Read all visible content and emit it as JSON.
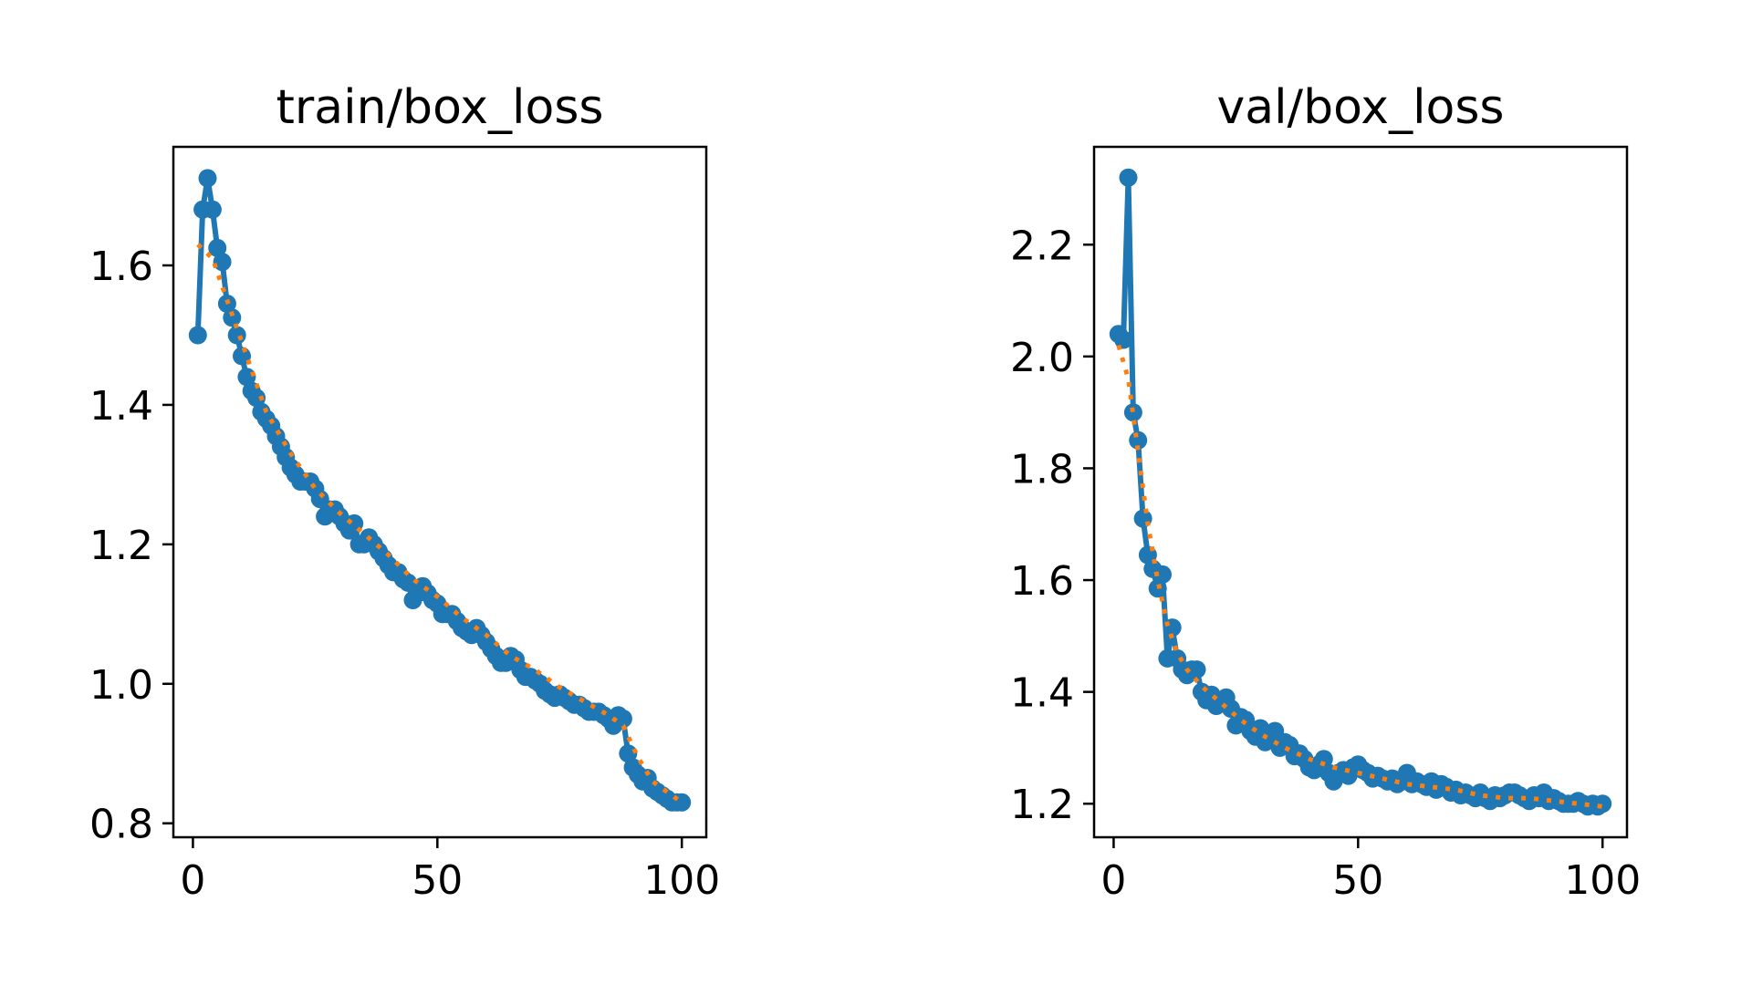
{
  "chart_data": [
    {
      "type": "line",
      "title": "train/box_loss",
      "xlabel": "",
      "ylabel": "",
      "xlim": [
        -4,
        105
      ],
      "ylim": [
        0.78,
        1.77
      ],
      "xticks": [
        0,
        50,
        100
      ],
      "xtick_labels": [
        "0",
        "50",
        "100"
      ],
      "yticks": [
        0.8,
        1.0,
        1.2,
        1.4,
        1.6
      ],
      "ytick_labels": [
        "0.8",
        "1.0",
        "1.2",
        "1.4",
        "1.6"
      ],
      "grid": false,
      "legend": "none",
      "series": [
        {
          "style": "line-markers",
          "color": "#1f77b4",
          "x": [
            1,
            2,
            3,
            4,
            5,
            6,
            7,
            8,
            9,
            10,
            11,
            12,
            13,
            14,
            15,
            16,
            17,
            18,
            19,
            20,
            21,
            22,
            23,
            24,
            25,
            26,
            27,
            28,
            29,
            30,
            31,
            32,
            33,
            34,
            35,
            36,
            37,
            38,
            39,
            40,
            41,
            42,
            43,
            44,
            45,
            46,
            47,
            48,
            49,
            50,
            51,
            52,
            53,
            54,
            55,
            56,
            57,
            58,
            59,
            60,
            61,
            62,
            63,
            64,
            65,
            66,
            67,
            68,
            69,
            70,
            71,
            72,
            73,
            74,
            75,
            76,
            77,
            78,
            79,
            80,
            81,
            82,
            83,
            84,
            85,
            86,
            87,
            88,
            89,
            90,
            91,
            92,
            93,
            94,
            95,
            96,
            97,
            98,
            99,
            100
          ],
          "y": [
            1.5,
            1.68,
            1.725,
            1.68,
            1.625,
            1.605,
            1.545,
            1.525,
            1.5,
            1.47,
            1.44,
            1.42,
            1.41,
            1.39,
            1.38,
            1.37,
            1.355,
            1.34,
            1.325,
            1.31,
            1.3,
            1.29,
            1.29,
            1.29,
            1.28,
            1.265,
            1.24,
            1.25,
            1.25,
            1.24,
            1.23,
            1.22,
            1.23,
            1.2,
            1.2,
            1.21,
            1.2,
            1.19,
            1.18,
            1.17,
            1.16,
            1.16,
            1.15,
            1.145,
            1.12,
            1.13,
            1.14,
            1.13,
            1.12,
            1.115,
            1.1,
            1.1,
            1.1,
            1.09,
            1.08,
            1.075,
            1.07,
            1.08,
            1.07,
            1.06,
            1.05,
            1.04,
            1.03,
            1.03,
            1.04,
            1.035,
            1.02,
            1.01,
            1.01,
            1.005,
            1.0,
            0.99,
            0.985,
            0.98,
            0.985,
            0.98,
            0.975,
            0.97,
            0.97,
            0.965,
            0.96,
            0.96,
            0.96,
            0.955,
            0.95,
            0.94,
            0.955,
            0.95,
            0.9,
            0.88,
            0.87,
            0.86,
            0.865,
            0.85,
            0.845,
            0.84,
            0.835,
            0.83,
            0.83,
            0.83
          ]
        },
        {
          "style": "dotted",
          "color": "#ff7f0e",
          "x": [
            1,
            4,
            7,
            10,
            15,
            20,
            25,
            30,
            35,
            40,
            45,
            50,
            55,
            60,
            65,
            70,
            75,
            80,
            85,
            88,
            91,
            94,
            97,
            100
          ],
          "y": [
            1.63,
            1.61,
            1.55,
            1.49,
            1.39,
            1.33,
            1.28,
            1.245,
            1.215,
            1.185,
            1.15,
            1.125,
            1.095,
            1.07,
            1.04,
            1.02,
            0.995,
            0.975,
            0.955,
            0.94,
            0.895,
            0.86,
            0.845,
            0.83
          ]
        }
      ]
    },
    {
      "type": "line",
      "title": "val/box_loss",
      "xlabel": "",
      "ylabel": "",
      "xlim": [
        -4,
        105
      ],
      "ylim": [
        1.14,
        2.375
      ],
      "xticks": [
        0,
        50,
        100
      ],
      "xtick_labels": [
        "0",
        "50",
        "100"
      ],
      "yticks": [
        1.2,
        1.4,
        1.6,
        1.8,
        2.0,
        2.2
      ],
      "ytick_labels": [
        "1.2",
        "1.4",
        "1.6",
        "1.8",
        "2.0",
        "2.2"
      ],
      "grid": false,
      "legend": "none",
      "series": [
        {
          "style": "line-markers",
          "color": "#1f77b4",
          "x": [
            1,
            2,
            3,
            4,
            5,
            6,
            7,
            8,
            9,
            10,
            11,
            12,
            13,
            14,
            15,
            16,
            17,
            18,
            19,
            20,
            21,
            22,
            23,
            24,
            25,
            26,
            27,
            28,
            29,
            30,
            31,
            32,
            33,
            34,
            35,
            36,
            37,
            38,
            39,
            40,
            41,
            42,
            43,
            44,
            45,
            46,
            47,
            48,
            49,
            50,
            51,
            52,
            53,
            54,
            55,
            56,
            57,
            58,
            59,
            60,
            61,
            62,
            63,
            64,
            65,
            66,
            67,
            68,
            69,
            70,
            71,
            72,
            73,
            74,
            75,
            76,
            77,
            78,
            79,
            80,
            81,
            82,
            83,
            84,
            85,
            86,
            87,
            88,
            89,
            90,
            91,
            92,
            93,
            94,
            95,
            96,
            97,
            98,
            99,
            100
          ],
          "y": [
            2.04,
            2.03,
            2.32,
            1.9,
            1.85,
            1.71,
            1.645,
            1.62,
            1.585,
            1.61,
            1.46,
            1.515,
            1.46,
            1.44,
            1.43,
            1.44,
            1.44,
            1.4,
            1.385,
            1.395,
            1.375,
            1.38,
            1.39,
            1.37,
            1.34,
            1.355,
            1.35,
            1.33,
            1.32,
            1.335,
            1.31,
            1.32,
            1.33,
            1.3,
            1.31,
            1.305,
            1.285,
            1.29,
            1.28,
            1.265,
            1.26,
            1.27,
            1.28,
            1.255,
            1.24,
            1.255,
            1.26,
            1.25,
            1.265,
            1.27,
            1.26,
            1.255,
            1.245,
            1.25,
            1.245,
            1.24,
            1.245,
            1.235,
            1.24,
            1.255,
            1.235,
            1.24,
            1.235,
            1.23,
            1.24,
            1.225,
            1.235,
            1.23,
            1.22,
            1.225,
            1.215,
            1.22,
            1.215,
            1.21,
            1.22,
            1.21,
            1.205,
            1.215,
            1.21,
            1.215,
            1.22,
            1.22,
            1.215,
            1.21,
            1.205,
            1.215,
            1.21,
            1.22,
            1.205,
            1.21,
            1.205,
            1.2,
            1.2,
            1.2,
            1.205,
            1.2,
            1.195,
            1.2,
            1.195,
            1.2
          ]
        },
        {
          "style": "dotted",
          "color": "#ff7f0e",
          "x": [
            1,
            3,
            5,
            7,
            9,
            11,
            13,
            15,
            18,
            22,
            26,
            30,
            35,
            40,
            45,
            50,
            55,
            60,
            65,
            70,
            75,
            80,
            85,
            90,
            95,
            100
          ],
          "y": [
            2.02,
            1.96,
            1.83,
            1.7,
            1.6,
            1.52,
            1.47,
            1.44,
            1.41,
            1.38,
            1.35,
            1.325,
            1.3,
            1.28,
            1.265,
            1.255,
            1.245,
            1.235,
            1.23,
            1.225,
            1.215,
            1.21,
            1.21,
            1.205,
            1.2,
            1.195
          ]
        }
      ]
    }
  ]
}
